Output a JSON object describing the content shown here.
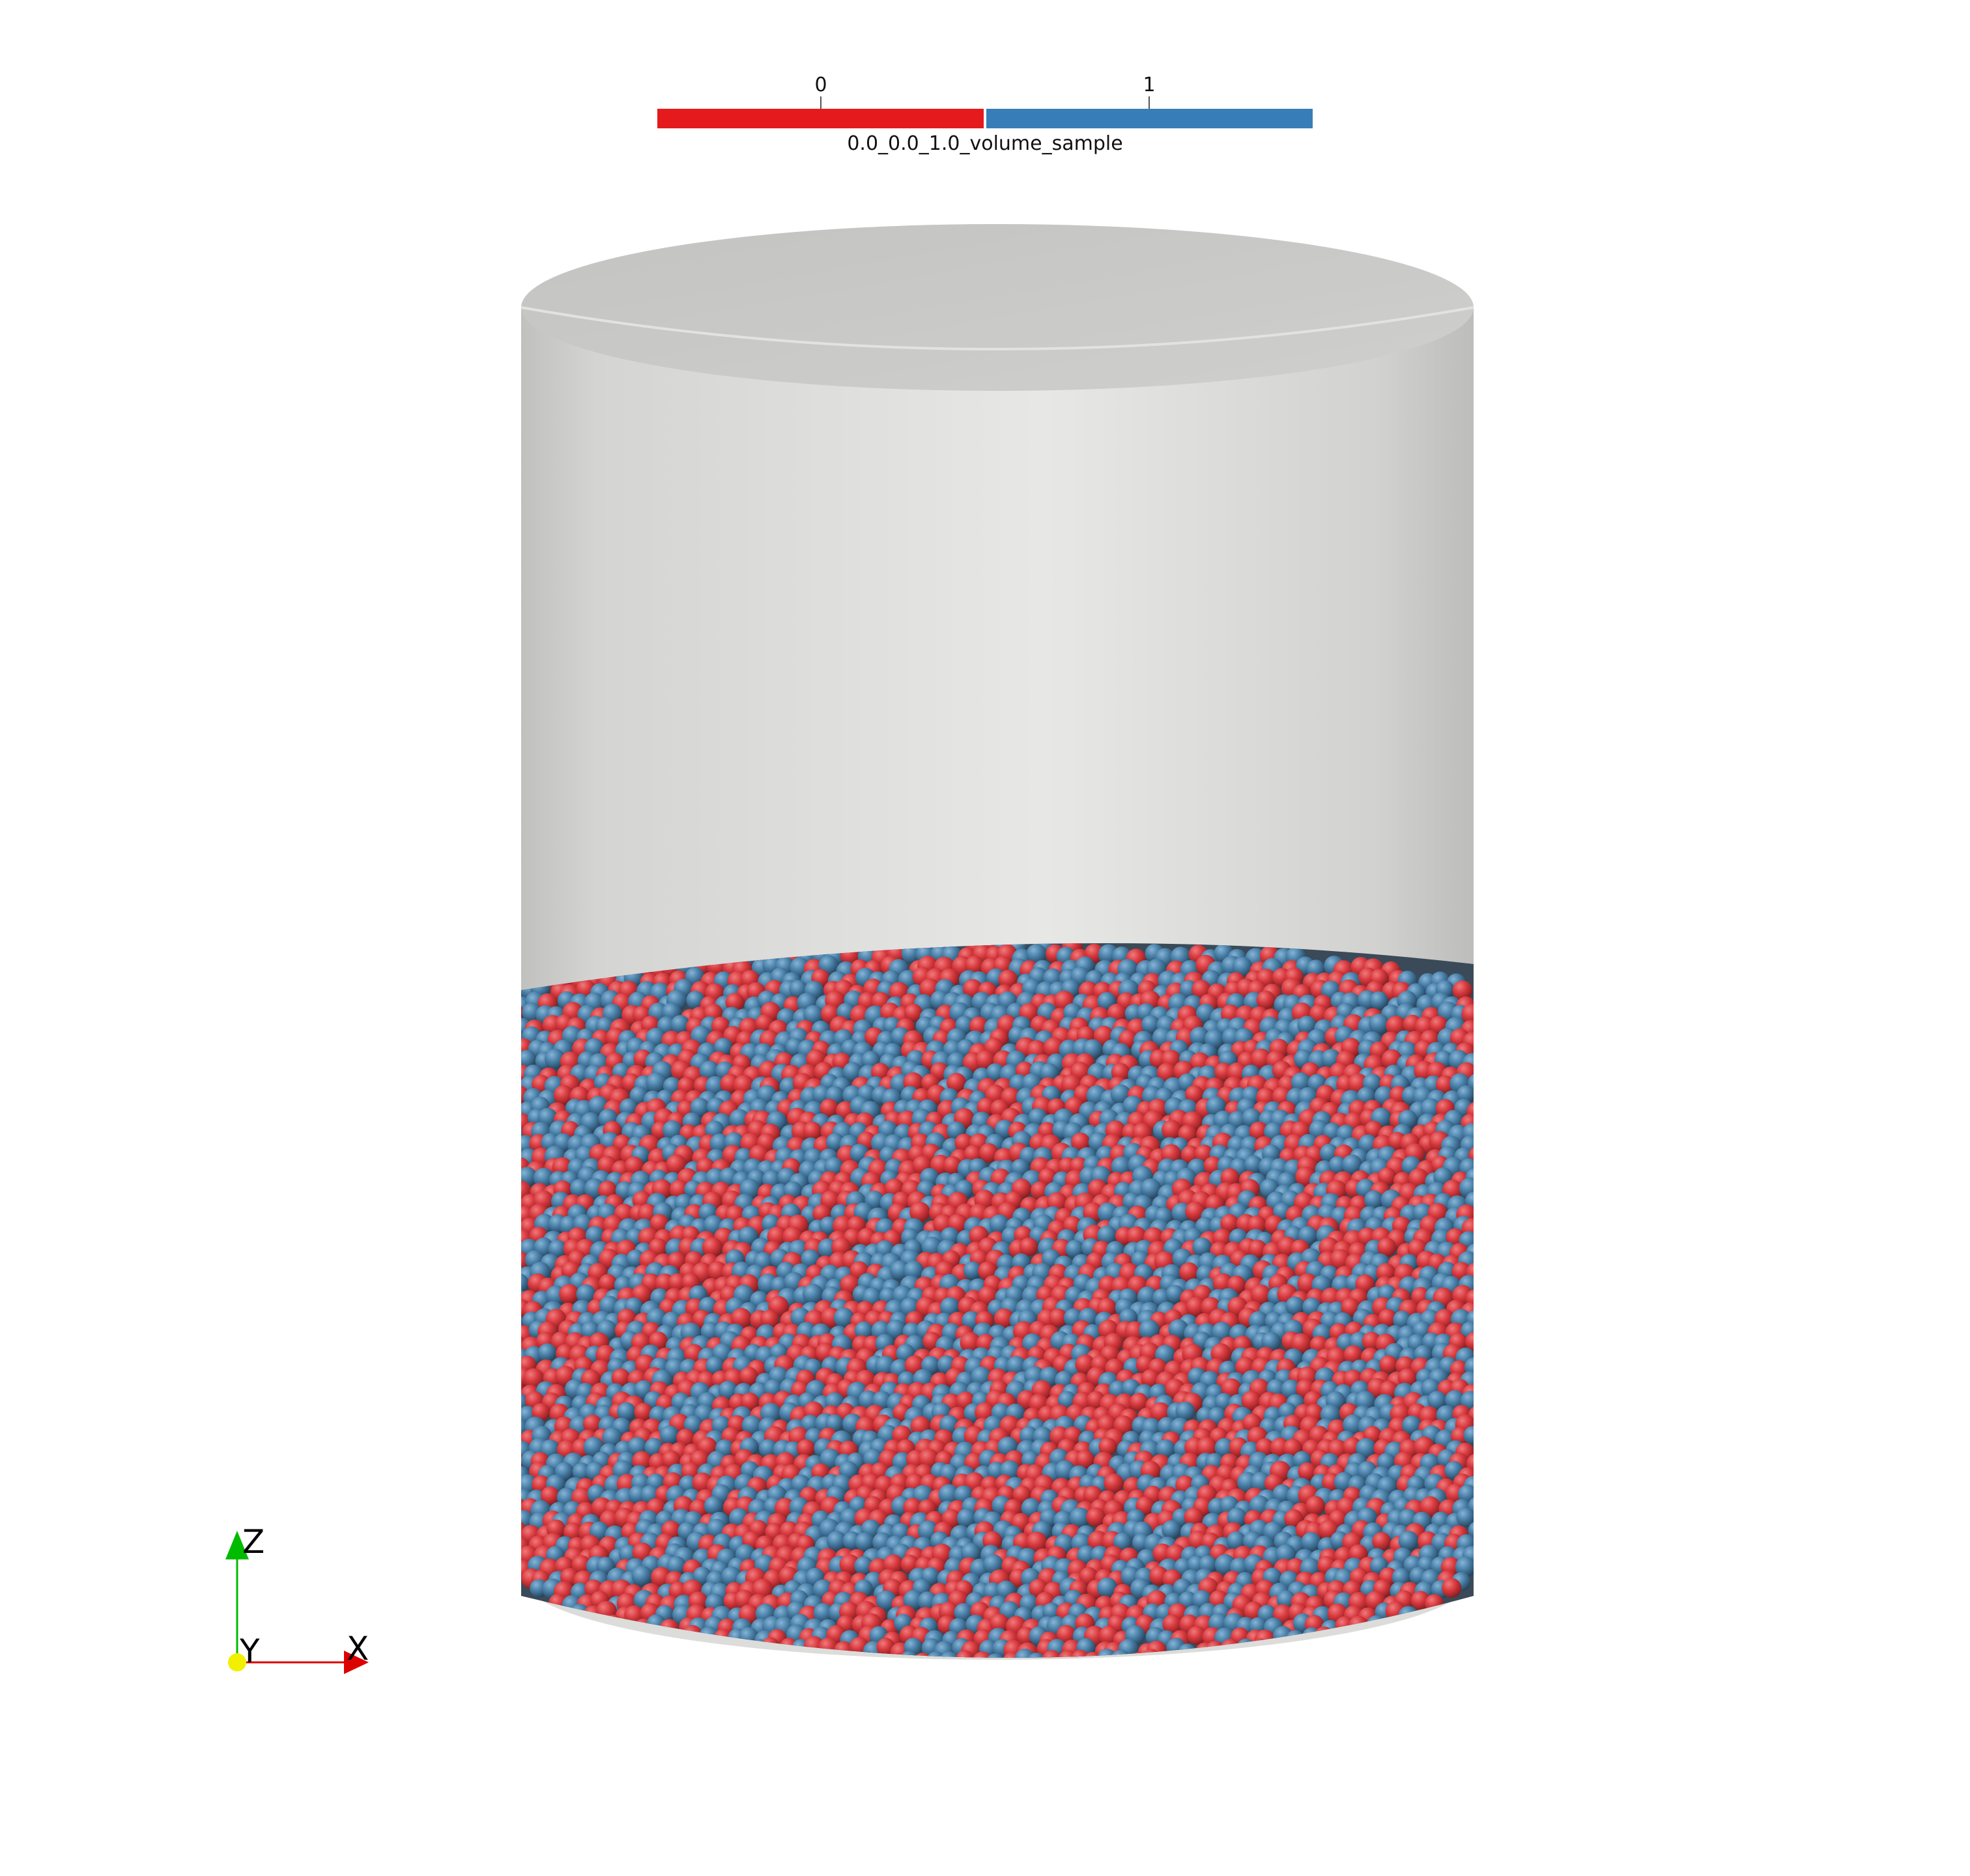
{
  "legend": {
    "title": "0.0_0.0_1.0_volume_sample",
    "labels": [
      "0",
      "1"
    ],
    "colors": [
      "#e41a1c",
      "#377eb8"
    ]
  },
  "particles": {
    "colors": [
      "#d63a3f",
      "#4a80a8"
    ]
  },
  "container": {
    "color": "#d8d8d6"
  },
  "axes": {
    "x_label": "X",
    "y_label": "Y",
    "z_label": "Z",
    "x_color": "#dd0000",
    "y_color": "#f0f000",
    "z_color": "#00bb00"
  }
}
